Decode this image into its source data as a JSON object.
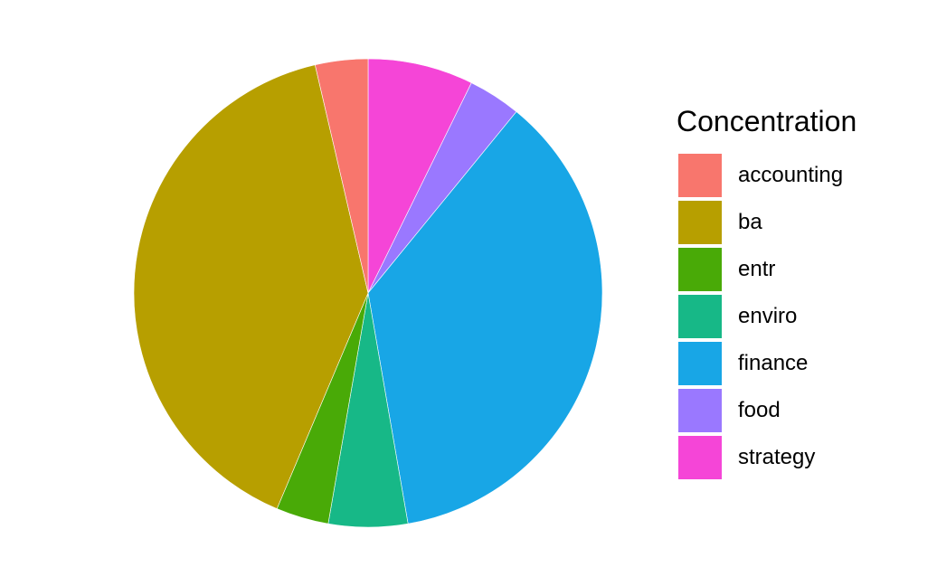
{
  "chart_data": {
    "type": "pie",
    "title": "",
    "legend_title": "Concentration",
    "legend_position": "right",
    "start": "top",
    "direction": "clockwise",
    "categories": [
      "accounting",
      "ba",
      "entr",
      "enviro",
      "finance",
      "food",
      "strategy"
    ],
    "values": [
      1,
      11,
      1,
      1.5,
      10,
      1,
      2
    ],
    "colors": [
      "#F8766D",
      "#B79F00",
      "#49AA07",
      "#17B887",
      "#18A6E6",
      "#9A78FF",
      "#F545D7"
    ],
    "slice_order": [
      "strategy",
      "food",
      "finance",
      "enviro",
      "entr",
      "ba",
      "accounting"
    ]
  }
}
